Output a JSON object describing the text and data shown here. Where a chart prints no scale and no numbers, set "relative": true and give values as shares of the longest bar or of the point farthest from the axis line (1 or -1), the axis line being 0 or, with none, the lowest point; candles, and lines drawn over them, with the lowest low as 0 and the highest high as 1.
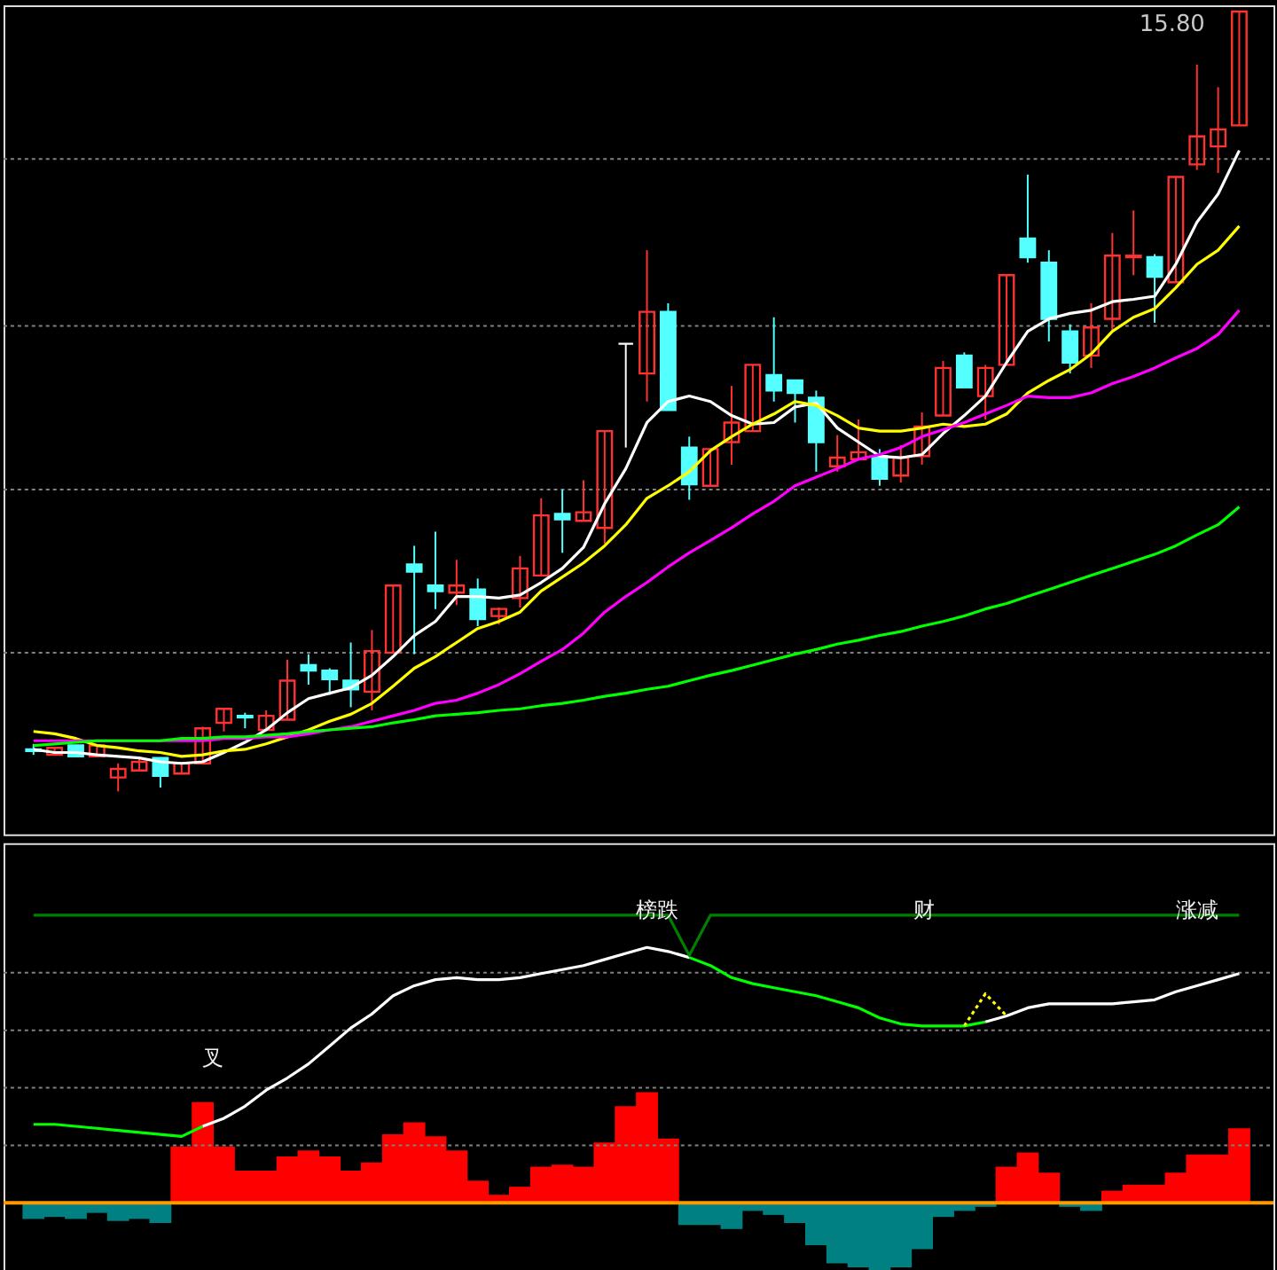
{
  "chart_data": [
    {
      "type": "candlestick",
      "relative": true,
      "annotations": [
        "15.80"
      ],
      "ref_lines": [
        {
          "axis": "y",
          "value": 0.178,
          "color": "#808080",
          "line_style": "dotted"
        },
        {
          "axis": "y",
          "value": 0.387,
          "color": "#808080",
          "line_style": "dotted"
        },
        {
          "axis": "y",
          "value": 0.597,
          "color": "#808080",
          "line_style": "dotted"
        },
        {
          "axis": "y",
          "value": 0.811,
          "color": "#808080",
          "line_style": "dotted"
        }
      ],
      "categories": [
        null,
        null,
        null,
        null,
        null,
        null,
        null,
        null,
        null,
        null,
        null,
        null,
        null,
        null,
        null,
        null,
        null,
        null,
        null,
        null,
        null,
        null,
        null,
        null,
        null,
        null,
        null,
        null,
        null,
        null,
        null,
        null,
        null,
        null,
        null,
        null,
        null,
        null,
        null,
        null,
        null,
        null,
        null,
        null,
        null,
        null,
        null,
        null,
        null,
        null,
        null,
        null,
        null,
        null,
        null,
        null,
        null,
        null
      ],
      "ohlc": [
        [
          0.054,
          0.061,
          0.047,
          0.052
        ],
        [
          0.047,
          0.056,
          0.047,
          0.056
        ],
        [
          0.059,
          0.059,
          0.045,
          0.045
        ],
        [
          0.045,
          0.059,
          0.045,
          0.059
        ],
        [
          0.018,
          0.036,
          0.0,
          0.029
        ],
        [
          0.027,
          0.043,
          0.027,
          0.038
        ],
        [
          0.043,
          0.043,
          0.005,
          0.02
        ],
        [
          0.023,
          0.036,
          0.023,
          0.036
        ],
        [
          0.036,
          0.083,
          0.036,
          0.081
        ],
        [
          0.088,
          0.106,
          0.077,
          0.106
        ],
        [
          0.097,
          0.101,
          0.081,
          0.095
        ],
        [
          0.079,
          0.104,
          0.079,
          0.097
        ],
        [
          0.092,
          0.169,
          0.092,
          0.142
        ],
        [
          0.162,
          0.176,
          0.137,
          0.155
        ],
        [
          0.155,
          0.158,
          0.124,
          0.144
        ],
        [
          0.142,
          0.191,
          0.108,
          0.131
        ],
        [
          0.128,
          0.207,
          0.104,
          0.18
        ],
        [
          0.178,
          0.264,
          0.178,
          0.264
        ],
        [
          0.291,
          0.315,
          0.176,
          0.282
        ],
        [
          0.264,
          0.333,
          0.234,
          0.257
        ],
        [
          0.255,
          0.297,
          0.239,
          0.264
        ],
        [
          0.259,
          0.273,
          0.212,
          0.221
        ],
        [
          0.225,
          0.236,
          0.214,
          0.234
        ],
        [
          0.248,
          0.302,
          0.236,
          0.286
        ],
        [
          0.277,
          0.376,
          0.277,
          0.354
        ],
        [
          0.356,
          0.387,
          0.306,
          0.349
        ],
        [
          0.347,
          0.399,
          0.347,
          0.358
        ],
        [
          0.338,
          0.462,
          0.318,
          0.462
        ],
        [
          0.574,
          0.574,
          0.441,
          0.574
        ],
        [
          0.536,
          0.694,
          0.5,
          0.615
        ],
        [
          0.615,
          0.626,
          0.489,
          0.489
        ],
        [
          0.441,
          0.455,
          0.374,
          0.394
        ],
        [
          0.392,
          0.439,
          0.392,
          0.439
        ],
        [
          0.448,
          0.52,
          0.419,
          0.473
        ],
        [
          0.462,
          0.547,
          0.462,
          0.547
        ],
        [
          0.534,
          0.608,
          0.5,
          0.514
        ],
        [
          0.527,
          0.527,
          0.473,
          0.511
        ],
        [
          0.505,
          0.514,
          0.41,
          0.448
        ],
        [
          0.417,
          0.457,
          0.41,
          0.428
        ],
        [
          0.426,
          0.477,
          0.426,
          0.435
        ],
        [
          0.43,
          0.439,
          0.392,
          0.401
        ],
        [
          0.405,
          0.444,
          0.396,
          0.428
        ],
        [
          0.43,
          0.486,
          0.419,
          0.468
        ],
        [
          0.482,
          0.552,
          0.482,
          0.543
        ],
        [
          0.559,
          0.563,
          0.518,
          0.518
        ],
        [
          0.507,
          0.547,
          0.477,
          0.543
        ],
        [
          0.547,
          0.662,
          0.547,
          0.662
        ],
        [
          0.709,
          0.791,
          0.678,
          0.685
        ],
        [
          0.678,
          0.694,
          0.577,
          0.606
        ],
        [
          0.59,
          0.599,
          0.536,
          0.55
        ],
        [
          0.559,
          0.626,
          0.543,
          0.595
        ],
        [
          0.606,
          0.716,
          0.59,
          0.687
        ],
        [
          0.685,
          0.745,
          0.662,
          0.687
        ],
        [
          0.685,
          0.689,
          0.601,
          0.66
        ],
        [
          0.653,
          0.788,
          0.653,
          0.788
        ],
        [
          0.804,
          0.932,
          0.797,
          0.84
        ],
        [
          0.827,
          0.903,
          0.793,
          0.849
        ],
        [
          0.854,
          1.0,
          0.854,
          1.0
        ]
      ],
      "colors": [
        "#54ffff",
        "#ff3232",
        "#54ffff",
        "#ff3232",
        "#ff3232",
        "#ff3232",
        "#54ffff",
        "#ff3232",
        "#ff3232",
        "#ff3232",
        "#54ffff",
        "#ff3232",
        "#ff3232",
        "#54ffff",
        "#54ffff",
        "#54ffff",
        "#ff3232",
        "#ff3232",
        "#54ffff",
        "#54ffff",
        "#ff3232",
        "#54ffff",
        "#ff3232",
        "#ff3232",
        "#ff3232",
        "#54ffff",
        "#ff3232",
        "#ff3232",
        "#ffffff",
        "#ff3232",
        "#54ffff",
        "#54ffff",
        "#ff3232",
        "#ff3232",
        "#ff3232",
        "#54ffff",
        "#54ffff",
        "#54ffff",
        "#ff3232",
        "#ff3232",
        "#54ffff",
        "#ff3232",
        "#ff3232",
        "#ff3232",
        "#54ffff",
        "#ff3232",
        "#ff3232",
        "#54ffff",
        "#54ffff",
        "#54ffff",
        "#ff3232",
        "#ff3232",
        "#ff3232",
        "#54ffff",
        "#ff3232",
        "#ff3232",
        "#ff3232",
        "#ff3232"
      ],
      "series": [
        {
          "type": "line",
          "color": "#ffffff",
          "values": [
            0.054,
            0.05,
            0.05,
            0.047,
            0.045,
            0.043,
            0.038,
            0.036,
            0.038,
            0.05,
            0.063,
            0.079,
            0.101,
            0.119,
            0.126,
            0.133,
            0.149,
            0.173,
            0.2,
            0.218,
            0.25,
            0.25,
            0.248,
            0.252,
            0.268,
            0.286,
            0.313,
            0.369,
            0.414,
            0.473,
            0.5,
            0.507,
            0.5,
            0.482,
            0.471,
            0.473,
            0.493,
            0.498,
            0.466,
            0.448,
            0.43,
            0.428,
            0.432,
            0.459,
            0.482,
            0.507,
            0.55,
            0.59,
            0.606,
            0.613,
            0.617,
            0.628,
            0.631,
            0.635,
            0.676,
            0.73,
            0.766,
            0.822
          ]
        },
        {
          "type": "line",
          "color": "#ffff00",
          "values": [
            0.077,
            0.074,
            0.068,
            0.059,
            0.056,
            0.052,
            0.05,
            0.045,
            0.047,
            0.052,
            0.054,
            0.061,
            0.07,
            0.079,
            0.09,
            0.099,
            0.113,
            0.135,
            0.158,
            0.173,
            0.191,
            0.209,
            0.218,
            0.23,
            0.257,
            0.275,
            0.293,
            0.315,
            0.342,
            0.376,
            0.392,
            0.41,
            0.437,
            0.455,
            0.471,
            0.484,
            0.5,
            0.495,
            0.482,
            0.466,
            0.462,
            0.462,
            0.466,
            0.471,
            0.468,
            0.471,
            0.484,
            0.511,
            0.527,
            0.541,
            0.561,
            0.59,
            0.608,
            0.619,
            0.646,
            0.676,
            0.694,
            0.725
          ]
        },
        {
          "type": "line",
          "color": "#ff00ff",
          "values": [
            0.065,
            0.065,
            0.065,
            0.065,
            0.065,
            0.065,
            0.065,
            0.065,
            0.065,
            0.068,
            0.068,
            0.07,
            0.07,
            0.074,
            0.079,
            0.083,
            0.09,
            0.097,
            0.104,
            0.113,
            0.117,
            0.126,
            0.137,
            0.151,
            0.167,
            0.182,
            0.203,
            0.23,
            0.25,
            0.268,
            0.288,
            0.306,
            0.322,
            0.338,
            0.356,
            0.372,
            0.392,
            0.403,
            0.414,
            0.426,
            0.432,
            0.441,
            0.455,
            0.464,
            0.473,
            0.484,
            0.495,
            0.507,
            0.505,
            0.505,
            0.511,
            0.523,
            0.532,
            0.543,
            0.556,
            0.568,
            0.586,
            0.617
          ]
        },
        {
          "type": "line",
          "color": "#00ff00",
          "values": [
            0.059,
            0.061,
            0.063,
            0.065,
            0.065,
            0.065,
            0.065,
            0.068,
            0.068,
            0.07,
            0.07,
            0.072,
            0.074,
            0.077,
            0.079,
            0.081,
            0.083,
            0.088,
            0.092,
            0.097,
            0.099,
            0.101,
            0.104,
            0.106,
            0.11,
            0.113,
            0.117,
            0.122,
            0.126,
            0.131,
            0.135,
            0.142,
            0.149,
            0.155,
            0.162,
            0.169,
            0.176,
            0.182,
            0.189,
            0.194,
            0.2,
            0.205,
            0.212,
            0.218,
            0.225,
            0.234,
            0.241,
            0.25,
            0.259,
            0.268,
            0.277,
            0.286,
            0.295,
            0.304,
            0.315,
            0.329,
            0.342,
            0.365
          ]
        }
      ]
    },
    {
      "type": "bar",
      "relative": true,
      "annotations": [
        "榜跌",
        "财",
        "涨减",
        "叉"
      ],
      "ref_lines": [
        {
          "axis": "y",
          "value": 0,
          "color": "#ff9900",
          "line_style": "solid"
        },
        {
          "axis": "y",
          "value": 0.2,
          "color": "#808080",
          "line_style": "dotted"
        },
        {
          "axis": "y",
          "value": 0.4,
          "color": "#808080",
          "line_style": "dotted"
        },
        {
          "axis": "y",
          "value": 0.6,
          "color": "#808080",
          "line_style": "dotted"
        },
        {
          "axis": "y",
          "value": 0.8,
          "color": "#808080",
          "line_style": "dotted"
        }
      ],
      "categories": [
        null,
        null,
        null,
        null,
        null,
        null,
        null,
        null,
        null,
        null,
        null,
        null,
        null,
        null,
        null,
        null,
        null,
        null,
        null,
        null,
        null,
        null,
        null,
        null,
        null,
        null,
        null,
        null,
        null,
        null,
        null,
        null,
        null,
        null,
        null,
        null,
        null,
        null,
        null,
        null,
        null,
        null,
        null,
        null,
        null,
        null,
        null,
        null,
        null,
        null,
        null,
        null,
        null,
        null,
        null,
        null,
        null,
        null
      ],
      "series": [
        {
          "type": "bar",
          "colors": [
            "#008080",
            "#008080",
            "#008080",
            "#008080",
            "#008080",
            "#008080",
            "#008080",
            "#ff0000",
            "#ff0000",
            "#ff0000",
            "#ff0000",
            "#ff0000",
            "#ff0000",
            "#ff0000",
            "#ff0000",
            "#ff0000",
            "#ff0000",
            "#ff0000",
            "#ff0000",
            "#ff0000",
            "#ff0000",
            "#ff0000",
            "#ff0000",
            "#ff0000",
            "#ff0000",
            "#ff0000",
            "#ff0000",
            "#ff0000",
            "#ff0000",
            "#ff0000",
            "#ff0000",
            "#008080",
            "#008080",
            "#008080",
            "#008080",
            "#008080",
            "#008080",
            "#008080",
            "#008080",
            "#008080",
            "#008080",
            "#008080",
            "#008080",
            "#008080",
            "#008080",
            "#008080",
            "#ff0000",
            "#ff0000",
            "#ff0000",
            "#008080",
            "#008080",
            "#ff0000",
            "#ff0000",
            "#ff0000",
            "#ff0000",
            "#ff0000",
            "#ff0000",
            "#ff0000"
          ],
          "values": [
            -0.056,
            -0.049,
            -0.056,
            -0.035,
            -0.063,
            -0.056,
            -0.07,
            0.196,
            0.35,
            0.196,
            0.112,
            0.112,
            0.161,
            0.182,
            0.161,
            0.112,
            0.14,
            0.238,
            0.28,
            0.231,
            0.182,
            0.077,
            0.028,
            0.056,
            0.126,
            0.133,
            0.126,
            0.21,
            0.336,
            0.385,
            0.224,
            -0.077,
            -0.077,
            -0.091,
            -0.028,
            -0.042,
            -0.07,
            -0.147,
            -0.21,
            -0.224,
            -0.252,
            -0.224,
            -0.161,
            -0.049,
            -0.028,
            -0.014,
            0.126,
            0.175,
            0.105,
            -0.014,
            -0.028,
            0.042,
            0.063,
            0.063,
            0.105,
            0.168,
            0.168,
            0.259
          ]
        },
        {
          "type": "line",
          "color": "#00ff00",
          "values": [
            0.273,
            0.273,
            0.266,
            0.259,
            0.252,
            0.245,
            0.238,
            0.231,
            0.266,
            null,
            null,
            null,
            null,
            null,
            null,
            null,
            null,
            null,
            null,
            null,
            null,
            null,
            null,
            null,
            null,
            null,
            null,
            null,
            null,
            null,
            null,
            0.853,
            0.825,
            0.783,
            0.762,
            0.748,
            0.734,
            0.72,
            0.699,
            0.678,
            0.643,
            0.622,
            0.615,
            0.615,
            0.615,
            0.629,
            null,
            null,
            null,
            null,
            null,
            null,
            null,
            null,
            null,
            null,
            null,
            null
          ]
        },
        {
          "type": "line",
          "color": "#ffffff",
          "values": [
            null,
            null,
            null,
            null,
            null,
            null,
            null,
            null,
            0.266,
            0.294,
            0.336,
            0.392,
            0.434,
            0.483,
            0.545,
            0.608,
            0.657,
            0.72,
            0.755,
            0.776,
            0.783,
            0.776,
            0.776,
            0.783,
            0.797,
            0.811,
            0.825,
            0.846,
            0.867,
            0.888,
            0.874,
            0.853,
            null,
            null,
            null,
            null,
            null,
            null,
            null,
            null,
            null,
            null,
            null,
            null,
            null,
            0.629,
            0.65,
            0.678,
            0.692,
            0.692,
            0.692,
            0.692,
            0.699,
            0.706,
            0.734,
            0.755,
            0.776,
            0.797
          ]
        },
        {
          "type": "line",
          "color": "#008000",
          "values": [
            1,
            1,
            1,
            1,
            1,
            1,
            1,
            1,
            1,
            1,
            1,
            1,
            1,
            1,
            1,
            1,
            1,
            1,
            1,
            1,
            1,
            1,
            1,
            1,
            1,
            1,
            1,
            1,
            1,
            1,
            1,
            0.86,
            1,
            1,
            1,
            1,
            1,
            1,
            1,
            1,
            1,
            1,
            1,
            1,
            1,
            1,
            1,
            1,
            1,
            1,
            1,
            1,
            1,
            1,
            1,
            1,
            1,
            1
          ]
        },
        {
          "type": "line",
          "color": "#ffff00",
          "line_style": "dotted",
          "values": [
            null,
            null,
            null,
            null,
            null,
            null,
            null,
            null,
            null,
            null,
            null,
            null,
            null,
            null,
            null,
            null,
            null,
            null,
            null,
            null,
            null,
            null,
            null,
            null,
            null,
            null,
            null,
            null,
            null,
            null,
            null,
            null,
            null,
            null,
            null,
            null,
            null,
            null,
            null,
            null,
            null,
            null,
            null,
            null,
            0.615,
            0.727,
            0.65,
            null,
            null,
            null,
            null,
            null,
            null,
            null,
            null,
            null,
            null,
            null
          ]
        }
      ]
    }
  ]
}
